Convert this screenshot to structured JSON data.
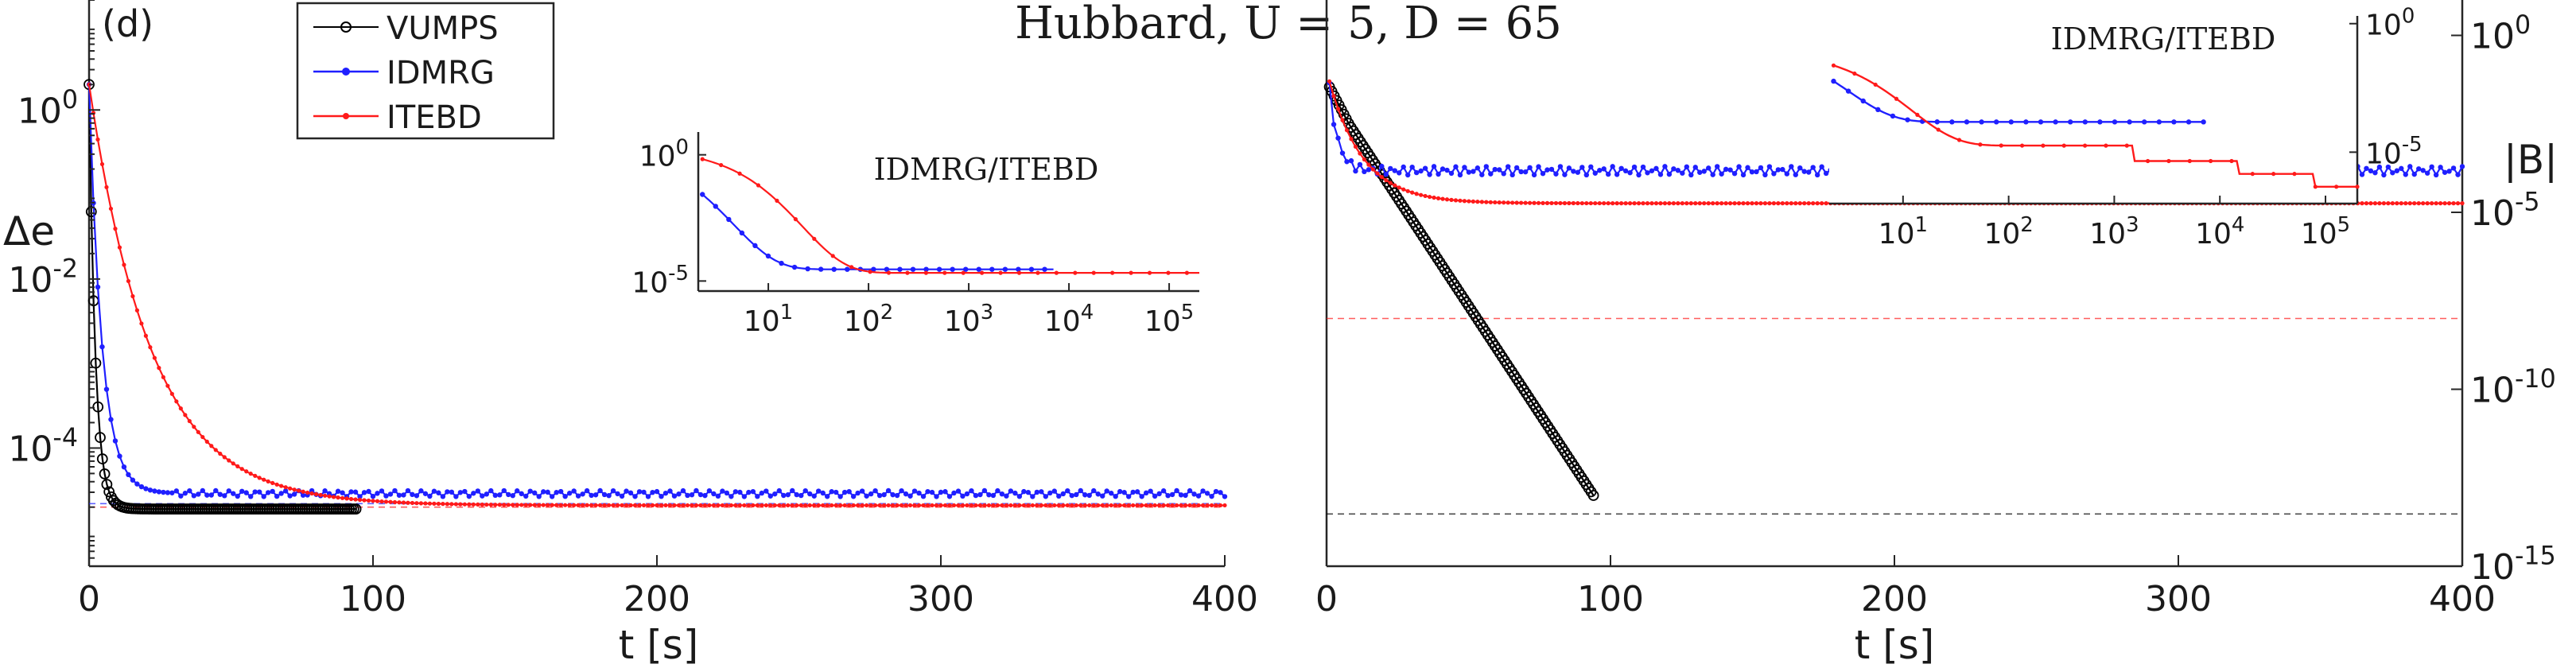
{
  "title": "Hubbard, U = 5, D = 65",
  "panel_label": "(d)",
  "colors": {
    "vumps": "#000000",
    "idmrg": "#1f1fff",
    "itebd": "#ff1a1a",
    "axis": "#262626"
  },
  "legend": [
    {
      "name": "VUMPS",
      "color": "#000000",
      "marker": "circle"
    },
    {
      "name": "IDMRG",
      "color": "#1f1fff",
      "marker": "star"
    },
    {
      "name": "ITEBD",
      "color": "#ff1a1a",
      "marker": "dot"
    }
  ],
  "chart_data": [
    {
      "id": "energy_error",
      "type": "line",
      "xlabel": "t [s]",
      "ylabel": "Δe",
      "xscale": "linear",
      "yscale": "log",
      "xlim": [
        0,
        400
      ],
      "ylim": [
        4e-06,
        20
      ],
      "xticks": [
        0,
        100,
        200,
        300,
        400
      ],
      "xtick_labels": [
        "0",
        "100",
        "200",
        "300",
        "400"
      ],
      "yticks": [
        1,
        0.01,
        0.0001
      ],
      "ytick_labels": [
        {
          "base": "10",
          "exp": "0"
        },
        {
          "base": "10",
          "exp": "-2"
        },
        {
          "base": "10",
          "exp": "-4"
        }
      ],
      "reference_lines": [
        {
          "series": "IDMRG",
          "y": 2.2e-05
        },
        {
          "series": "ITEBD",
          "y": 2e-05
        }
      ],
      "series": [
        {
          "name": "VUMPS",
          "x_end": 94,
          "start": 2.0,
          "final": 1.9e-05,
          "decay": 2.2
        },
        {
          "name": "IDMRG",
          "x_end": 400,
          "start": 2.0,
          "final": 2.9e-05,
          "decay": 4.5
        },
        {
          "name": "ITEBD",
          "x_end": 400,
          "start": 2.0,
          "final": 2.1e-05,
          "decay": 22
        }
      ],
      "inset": {
        "title": "IDMRG/ITEBD",
        "xscale": "log",
        "yscale": "log",
        "xlim": [
          2,
          200000
        ],
        "ylim": [
          4e-06,
          8
        ],
        "xtick_labels": [
          {
            "base": "10",
            "exp": "1"
          },
          {
            "base": "10",
            "exp": "2"
          },
          {
            "base": "10",
            "exp": "3"
          },
          {
            "base": "10",
            "exp": "4"
          },
          {
            "base": "10",
            "exp": "5"
          }
        ],
        "ytick_labels": [
          {
            "base": "10",
            "exp": "0"
          },
          {
            "base": "10",
            "exp": "-5"
          }
        ],
        "series": [
          {
            "name": "IDMRG",
            "x_end": 7000
          },
          {
            "name": "ITEBD",
            "x_end": 200000
          }
        ]
      }
    },
    {
      "id": "gradient_norm",
      "type": "line",
      "xlabel": "t [s]",
      "ylabel": "|B|",
      "xscale": "linear",
      "yscale": "log",
      "xlim": [
        0,
        400
      ],
      "ylim": [
        1e-15,
        10
      ],
      "xticks": [
        0,
        100,
        200,
        300,
        400
      ],
      "xtick_labels": [
        "0",
        "100",
        "200",
        "300",
        "400"
      ],
      "yticks": [
        1,
        1e-05,
        1e-10,
        1e-15
      ],
      "ytick_labels": [
        {
          "base": "10",
          "exp": "0"
        },
        {
          "base": "10",
          "exp": "-5"
        },
        {
          "base": "10",
          "exp": "-10"
        },
        {
          "base": "10",
          "exp": "-15"
        }
      ],
      "reference_lines": [
        {
          "series": "ITEBD",
          "y": 1e-08
        },
        {
          "series": "VUMPS",
          "y": 3e-14
        }
      ],
      "series": [
        {
          "name": "VUMPS",
          "x_end": 94,
          "start": 0.05,
          "final": 1e-13
        },
        {
          "name": "IDMRG",
          "x_end": 400,
          "start": 0.3,
          "final": 0.00015
        },
        {
          "name": "ITEBD",
          "x_end": 400,
          "start": 0.1,
          "final": 1.8e-05
        }
      ],
      "inset": {
        "title": "IDMRG/ITEBD",
        "xscale": "log",
        "yscale": "log",
        "xlim": [
          2,
          200000
        ],
        "ylim": [
          1e-07,
          2
        ],
        "xtick_labels": [
          {
            "base": "10",
            "exp": "1"
          },
          {
            "base": "10",
            "exp": "2"
          },
          {
            "base": "10",
            "exp": "3"
          },
          {
            "base": "10",
            "exp": "4"
          },
          {
            "base": "10",
            "exp": "5"
          }
        ],
        "ytick_labels": [
          {
            "base": "10",
            "exp": "0"
          },
          {
            "base": "10",
            "exp": "-5"
          }
        ],
        "series": [
          {
            "name": "IDMRG",
            "x_end": 7000
          },
          {
            "name": "ITEBD",
            "x_end": 200000
          }
        ]
      }
    }
  ]
}
